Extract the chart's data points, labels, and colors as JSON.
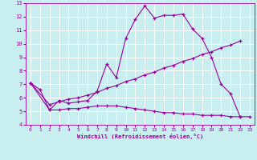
{
  "xlabel": "Windchill (Refroidissement éolien,°C)",
  "bg_color": "#c8eef0",
  "line_color": "#990099",
  "grid_color": "#ffffff",
  "xlim": [
    -0.5,
    23.5
  ],
  "ylim": [
    4,
    13
  ],
  "xticks": [
    0,
    1,
    2,
    3,
    4,
    5,
    6,
    7,
    8,
    9,
    10,
    11,
    12,
    13,
    14,
    15,
    16,
    17,
    18,
    19,
    20,
    21,
    22,
    23
  ],
  "yticks": [
    4,
    5,
    6,
    7,
    8,
    9,
    10,
    11,
    12,
    13
  ],
  "line1_x": [
    0,
    1,
    2,
    3,
    4,
    5,
    6,
    7,
    8,
    9,
    10,
    11,
    12,
    13,
    14,
    15,
    16,
    17,
    18,
    19,
    20,
    21,
    22
  ],
  "line1_y": [
    7.1,
    6.6,
    5.1,
    5.8,
    5.6,
    5.7,
    5.8,
    6.5,
    8.5,
    7.5,
    10.4,
    11.8,
    12.8,
    11.9,
    12.1,
    12.1,
    12.2,
    11.1,
    10.4,
    9.0,
    7.0,
    6.3,
    4.6
  ],
  "line2_x": [
    0,
    2,
    3,
    4,
    5,
    6,
    7,
    8,
    9,
    10,
    11,
    12,
    13,
    14,
    15,
    16,
    17,
    18,
    19,
    20,
    21,
    22
  ],
  "line2_y": [
    7.1,
    5.5,
    5.7,
    5.9,
    6.0,
    6.2,
    6.4,
    6.7,
    6.9,
    7.2,
    7.4,
    7.7,
    7.9,
    8.2,
    8.4,
    8.7,
    8.9,
    9.2,
    9.4,
    9.7,
    9.9,
    10.2
  ],
  "line3_x": [
    0,
    2,
    3,
    4,
    5,
    6,
    7,
    8,
    9,
    10,
    11,
    12,
    13,
    14,
    15,
    16,
    17,
    18,
    19,
    20,
    21,
    22,
    23
  ],
  "line3_y": [
    7.1,
    5.1,
    5.1,
    5.2,
    5.2,
    5.3,
    5.4,
    5.4,
    5.4,
    5.3,
    5.2,
    5.1,
    5.0,
    4.9,
    4.9,
    4.8,
    4.8,
    4.7,
    4.7,
    4.7,
    4.6,
    4.6,
    4.6
  ]
}
